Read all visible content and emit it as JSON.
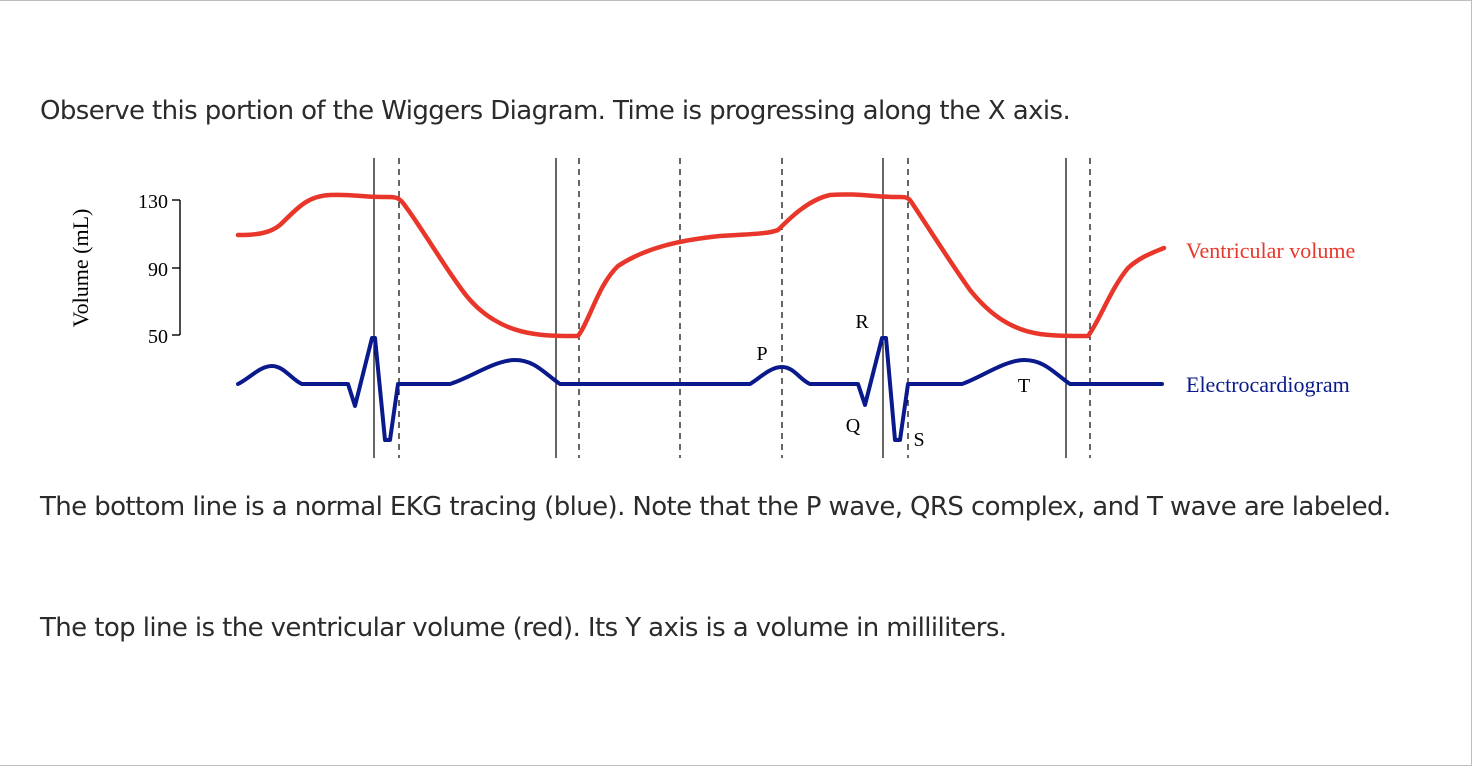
{
  "text": {
    "intro": "Observe this portion of the Wiggers Diagram. Time is progressing along the X axis.",
    "desc1": "The bottom line is a normal EKG tracing (blue). Note that the P wave, QRS complex, and T wave are labeled.",
    "desc2": "The top line is the ventricular volume (red). Its Y axis is a volume in milliliters."
  },
  "diagram": {
    "y_axis_label": "Volume (mL)",
    "y_ticks": [
      "130",
      "90",
      "50"
    ],
    "series_labels": {
      "volume": "Ventricular volume",
      "ekg": "Electrocardiogram"
    },
    "wave_labels": {
      "P": "P",
      "Q": "Q",
      "R": "R",
      "S": "S",
      "T": "T"
    },
    "colors": {
      "volume": "#e8372a",
      "ekg": "#0a1a8c",
      "text": "#2b2b2b"
    }
  }
}
